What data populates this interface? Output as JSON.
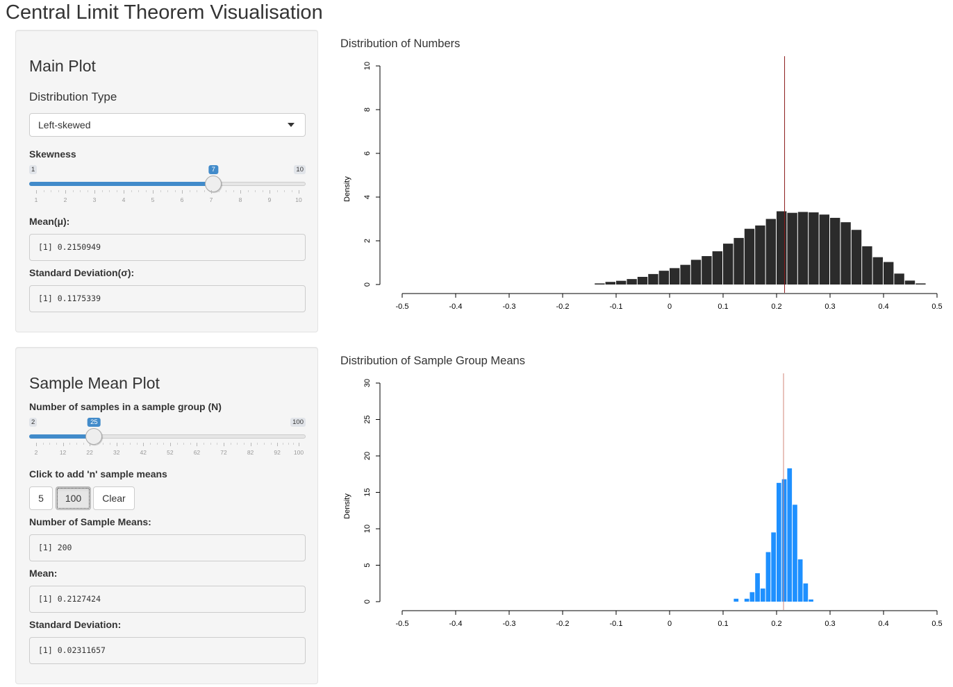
{
  "page": {
    "title": "Central Limit Theorem Visualisation"
  },
  "main_panel": {
    "heading": "Main Plot",
    "distribution_label": "Distribution Type",
    "distribution_value": "Left-skewed",
    "skewness": {
      "label": "Skewness",
      "min": 1,
      "max": 10,
      "value": 7,
      "min_label": "1",
      "max_label": "10",
      "value_label": "7",
      "ticks": [
        "1",
        "2",
        "3",
        "4",
        "5",
        "6",
        "7",
        "8",
        "9",
        "10"
      ]
    },
    "mean_label": "Mean(μ):",
    "mean_output": "[1] 0.2150949",
    "sd_label": "Standard Deviation(σ):",
    "sd_output": "[1] 0.1175339"
  },
  "sample_panel": {
    "heading": "Sample Mean Plot",
    "n_slider": {
      "label": "Number of samples in a sample group (N)",
      "min": 2,
      "max": 100,
      "value": 25,
      "min_label": "2",
      "max_label": "100",
      "value_label": "25",
      "ticks": [
        "2",
        "12",
        "22",
        "32",
        "42",
        "52",
        "62",
        "72",
        "82",
        "92",
        "100"
      ]
    },
    "add_label": "Click to add 'n' sample means",
    "buttons": {
      "five": "5",
      "hundred": "100",
      "clear": "Clear"
    },
    "count_label": "Number of Sample Means:",
    "count_output": "[1] 200",
    "mean_label": "Mean:",
    "mean_output": "[1] 0.2127424",
    "sd_label": "Standard Deviation:",
    "sd_output": "[1] 0.02311657"
  },
  "chart_data": [
    {
      "type": "bar",
      "title": "Distribution of Numbers",
      "xlabel": "",
      "ylabel": "Density",
      "xlim": [
        -0.5,
        0.5
      ],
      "ylim": [
        0,
        10
      ],
      "x_ticks": [
        "-0.5",
        "-0.4",
        "-0.3",
        "-0.2",
        "-0.1",
        "0",
        "0.1",
        "0.2",
        "0.3",
        "0.4",
        "0.5"
      ],
      "y_ticks": [
        "0",
        "2",
        "4",
        "6",
        "8",
        "10"
      ],
      "bar_color": "#2b2b2b",
      "mean_line": 0.215,
      "mean_line_color": "#8b1a1a",
      "bins": [
        {
          "x0": -0.14,
          "x1": -0.12,
          "y": 0.05
        },
        {
          "x0": -0.12,
          "x1": -0.1,
          "y": 0.12
        },
        {
          "x0": -0.1,
          "x1": -0.08,
          "y": 0.17
        },
        {
          "x0": -0.08,
          "x1": -0.06,
          "y": 0.25
        },
        {
          "x0": -0.06,
          "x1": -0.04,
          "y": 0.35
        },
        {
          "x0": -0.04,
          "x1": -0.02,
          "y": 0.48
        },
        {
          "x0": -0.02,
          "x1": 0.0,
          "y": 0.63
        },
        {
          "x0": 0.0,
          "x1": 0.02,
          "y": 0.75
        },
        {
          "x0": 0.02,
          "x1": 0.04,
          "y": 0.9
        },
        {
          "x0": 0.04,
          "x1": 0.06,
          "y": 1.13
        },
        {
          "x0": 0.06,
          "x1": 0.08,
          "y": 1.3
        },
        {
          "x0": 0.08,
          "x1": 0.1,
          "y": 1.52
        },
        {
          "x0": 0.1,
          "x1": 0.12,
          "y": 1.87
        },
        {
          "x0": 0.12,
          "x1": 0.14,
          "y": 2.13
        },
        {
          "x0": 0.14,
          "x1": 0.16,
          "y": 2.55
        },
        {
          "x0": 0.16,
          "x1": 0.18,
          "y": 2.7
        },
        {
          "x0": 0.18,
          "x1": 0.2,
          "y": 3.0
        },
        {
          "x0": 0.2,
          "x1": 0.22,
          "y": 3.35
        },
        {
          "x0": 0.22,
          "x1": 0.24,
          "y": 3.28
        },
        {
          "x0": 0.24,
          "x1": 0.26,
          "y": 3.32
        },
        {
          "x0": 0.26,
          "x1": 0.28,
          "y": 3.3
        },
        {
          "x0": 0.28,
          "x1": 0.3,
          "y": 3.2
        },
        {
          "x0": 0.3,
          "x1": 0.32,
          "y": 3.05
        },
        {
          "x0": 0.32,
          "x1": 0.34,
          "y": 2.85
        },
        {
          "x0": 0.34,
          "x1": 0.36,
          "y": 2.5
        },
        {
          "x0": 0.36,
          "x1": 0.38,
          "y": 1.75
        },
        {
          "x0": 0.38,
          "x1": 0.4,
          "y": 1.25
        },
        {
          "x0": 0.4,
          "x1": 0.42,
          "y": 1.03
        },
        {
          "x0": 0.42,
          "x1": 0.44,
          "y": 0.5
        },
        {
          "x0": 0.44,
          "x1": 0.46,
          "y": 0.18
        },
        {
          "x0": 0.46,
          "x1": 0.48,
          "y": 0.05
        }
      ]
    },
    {
      "type": "bar",
      "title": "Distribution of Sample Group Means",
      "xlabel": "",
      "ylabel": "Density",
      "xlim": [
        -0.5,
        0.5
      ],
      "ylim": [
        0,
        30
      ],
      "x_ticks": [
        "-0.5",
        "-0.4",
        "-0.3",
        "-0.2",
        "-0.1",
        "0",
        "0.1",
        "0.2",
        "0.3",
        "0.4",
        "0.5"
      ],
      "y_ticks": [
        "0",
        "5",
        "10",
        "15",
        "20",
        "25",
        "30"
      ],
      "bar_color": "#1e90ff",
      "mean_line": 0.213,
      "mean_line_color": "#d2867a",
      "bins": [
        {
          "x0": 0.12,
          "x1": 0.13,
          "y": 0.4
        },
        {
          "x0": 0.14,
          "x1": 0.15,
          "y": 0.4
        },
        {
          "x0": 0.15,
          "x1": 0.16,
          "y": 1.3
        },
        {
          "x0": 0.16,
          "x1": 0.17,
          "y": 3.9
        },
        {
          "x0": 0.17,
          "x1": 0.18,
          "y": 1.8
        },
        {
          "x0": 0.18,
          "x1": 0.19,
          "y": 6.8
        },
        {
          "x0": 0.19,
          "x1": 0.2,
          "y": 9.5
        },
        {
          "x0": 0.2,
          "x1": 0.21,
          "y": 16.3
        },
        {
          "x0": 0.21,
          "x1": 0.22,
          "y": 16.8
        },
        {
          "x0": 0.22,
          "x1": 0.23,
          "y": 18.3
        },
        {
          "x0": 0.23,
          "x1": 0.24,
          "y": 13.3
        },
        {
          "x0": 0.24,
          "x1": 0.25,
          "y": 5.8
        },
        {
          "x0": 0.25,
          "x1": 0.26,
          "y": 2.5
        },
        {
          "x0": 0.26,
          "x1": 0.27,
          "y": 0.3
        }
      ]
    }
  ]
}
